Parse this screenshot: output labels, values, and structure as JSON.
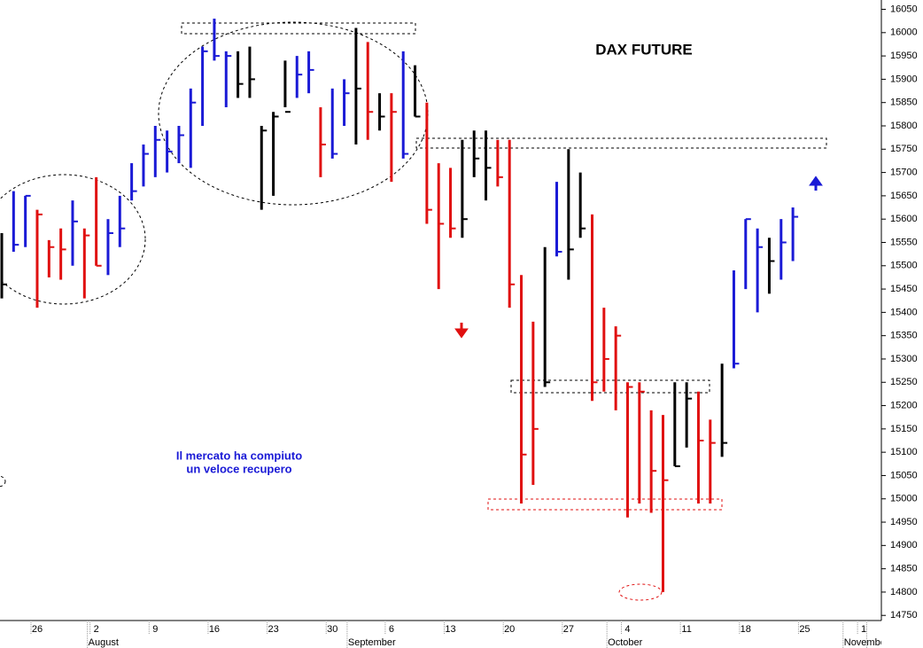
{
  "chart_data": {
    "type": "ohlc",
    "title": "DAX FUTURE",
    "annotations": [
      "Il mercato ha compiuto",
      "un veloce recupero"
    ],
    "x": [
      null,
      null,
      null,
      "26",
      null,
      null,
      null,
      null,
      "2",
      null,
      null,
      null,
      null,
      "9",
      null,
      null,
      null,
      null,
      "16",
      null,
      null,
      null,
      null,
      "23",
      null,
      null,
      null,
      null,
      "30",
      null,
      null,
      null,
      null,
      "6",
      null,
      null,
      null,
      null,
      "13",
      null,
      null,
      null,
      null,
      "20",
      null,
      null,
      null,
      null,
      "27",
      null,
      null,
      null,
      null,
      "4",
      null,
      null,
      null,
      null,
      "11",
      null,
      null,
      null,
      null,
      "18",
      null,
      null,
      null,
      null,
      "25",
      null,
      null,
      null,
      null,
      "1",
      null
    ],
    "months": [
      null,
      null,
      null,
      null,
      null,
      null,
      null,
      null,
      "August",
      null,
      null,
      null,
      null,
      null,
      null,
      null,
      null,
      null,
      null,
      null,
      null,
      null,
      null,
      null,
      null,
      null,
      null,
      null,
      null,
      null,
      "September",
      null,
      null,
      null,
      null,
      null,
      null,
      null,
      null,
      null,
      null,
      null,
      null,
      null,
      null,
      null,
      null,
      null,
      null,
      null,
      null,
      null,
      "October",
      null,
      null,
      null,
      null,
      null,
      null,
      null,
      null,
      null,
      null,
      null,
      null,
      null,
      null,
      null,
      null,
      null,
      null,
      null,
      "November",
      null
    ],
    "high": [
      15570,
      15660,
      15650,
      15620,
      15555,
      15580,
      15640,
      15580,
      15690,
      15600,
      15650,
      15720,
      15760,
      15800,
      15790,
      15800,
      15880,
      15970,
      16030,
      15960,
      15960,
      15970,
      15800,
      15830,
      15940,
      15950,
      15960,
      15840,
      15880,
      15900,
      16010,
      15980,
      15870,
      15870,
      15960,
      15930,
      15850,
      15720,
      15710,
      15770,
      15790,
      15790,
      15770,
      15770,
      15480,
      15380,
      15540,
      15680,
      15750,
      15700,
      15610,
      15410,
      15370,
      15250,
      15250,
      15190,
      15180,
      15250,
      15250,
      15230,
      15170,
      15290,
      15490,
      15600,
      15580,
      15560,
      15600,
      15625,
      null,
      null,
      null,
      null,
      null,
      null,
      null
    ],
    "low": [
      15430,
      15530,
      15540,
      15410,
      15475,
      15470,
      15500,
      15430,
      15500,
      15480,
      15540,
      15640,
      15670,
      15690,
      15700,
      15720,
      15710,
      15800,
      15940,
      15840,
      15860,
      15860,
      15620,
      15650,
      15840,
      15860,
      15870,
      15690,
      15730,
      15800,
      15760,
      15770,
      15790,
      15680,
      15730,
      15820,
      15590,
      15450,
      15560,
      15560,
      15690,
      15640,
      15670,
      15410,
      14990,
      15030,
      15240,
      15520,
      15470,
      15560,
      15210,
      15230,
      15190,
      14960,
      14990,
      14970,
      14800,
      15070,
      15110,
      14990,
      14990,
      15090,
      15280,
      15450,
      15400,
      15440,
      15470,
      15510,
      null,
      null,
      null,
      null,
      null,
      null,
      null
    ],
    "close": [
      15460,
      15545,
      15650,
      15610,
      15540,
      15535,
      15595,
      15565,
      15500,
      15570,
      15580,
      15660,
      15740,
      15770,
      15745,
      15780,
      15850,
      15960,
      15950,
      15950,
      15890,
      15900,
      15790,
      15820,
      15830,
      15910,
      15920,
      15760,
      15740,
      15870,
      15880,
      15830,
      15820,
      15830,
      15740,
      15820,
      15620,
      15590,
      15580,
      15600,
      15730,
      15710,
      15690,
      15460,
      15095,
      15150,
      15250,
      15530,
      15535,
      15580,
      15250,
      15300,
      15350,
      15240,
      15230,
      15060,
      15040,
      15070,
      15215,
      15125,
      15120,
      15120,
      15290,
      15600,
      15540,
      15510,
      15550,
      15605,
      null,
      null,
      null,
      null,
      null,
      null,
      null
    ],
    "colors": [
      "#000000",
      "#1a1ad6",
      "#1a1ad6",
      "#e01010",
      "#e01010",
      "#e01010",
      "#1a1ad6",
      "#e01010",
      "#e01010",
      "#1a1ad6",
      "#1a1ad6",
      "#1a1ad6",
      "#1a1ad6",
      "#1a1ad6",
      "#1a1ad6",
      "#1a1ad6",
      "#1a1ad6",
      "#1a1ad6",
      "#1a1ad6",
      "#1a1ad6",
      "#000000",
      "#000000",
      "#000000",
      "#000000",
      "#000000",
      "#1a1ad6",
      "#1a1ad6",
      "#e01010",
      "#1a1ad6",
      "#1a1ad6",
      "#000000",
      "#e01010",
      "#000000",
      "#e01010",
      "#1a1ad6",
      "#000000",
      "#e01010",
      "#e01010",
      "#e01010",
      "#000000",
      "#000000",
      "#000000",
      "#e01010",
      "#e01010",
      "#e01010",
      "#e01010",
      "#000000",
      "#1a1ad6",
      "#000000",
      "#000000",
      "#e01010",
      "#e01010",
      "#e01010",
      "#e01010",
      "#e01010",
      "#e01010",
      "#e01010",
      "#000000",
      "#000000",
      "#e01010",
      "#e01010",
      "#000000",
      "#1a1ad6",
      "#1a1ad6",
      "#1a1ad6",
      "#000000",
      "#1a1ad6",
      "#1a1ad6",
      null,
      null,
      null,
      null,
      null,
      null,
      null
    ],
    "ylim": [
      14720,
      16070
    ],
    "yticks": [
      14750,
      14800,
      14850,
      14900,
      14950,
      15000,
      15050,
      15100,
      15150,
      15200,
      15250,
      15300,
      15350,
      15400,
      15450,
      15500,
      15550,
      15600,
      15650,
      15700,
      15750,
      15800,
      15850,
      15900,
      15950,
      16000,
      16050
    ]
  }
}
